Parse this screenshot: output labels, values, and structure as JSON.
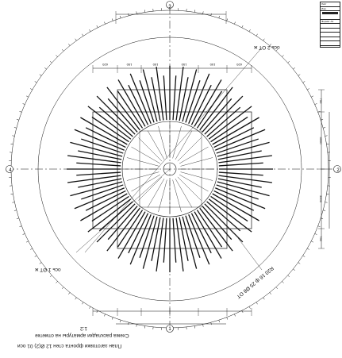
{
  "drawing": {
    "caption_line1": "План заготовки фронта стен 12 Ø(2) 01 оси",
    "caption_line2": "Схема раскладки арматуры на отметке",
    "scale": "1:2",
    "axis_top": "3",
    "axis_bottom": "1",
    "axis_left": "4",
    "axis_right": "2",
    "callout_upper": "ось 2 ОТ\nж",
    "callout_lower": "ось 1 ОТ\nж",
    "diagonal_note": "R20 16 ф 25 Ø8 ОТ",
    "dim_top": [
      "620",
      "150",
      "150",
      "150",
      "150",
      "620"
    ],
    "dim_right": [
      "750",
      "4000",
      "3000",
      "750"
    ],
    "ring_tick_count": 120,
    "rebar_count": 96
  },
  "stamp": {
    "rows": [
      "Лист",
      "Изм.",
      "",
      "Формат А4",
      "",
      "",
      "",
      "",
      ""
    ]
  },
  "colors": {
    "ink": "#111111",
    "paper": "#ffffff"
  }
}
